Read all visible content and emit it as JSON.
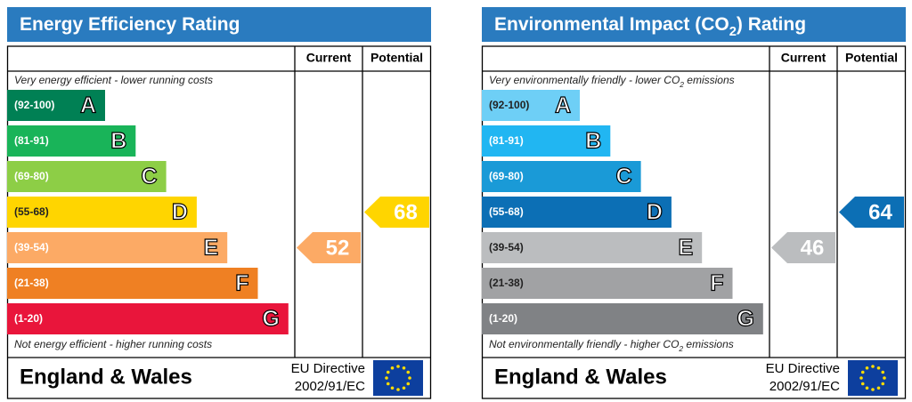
{
  "chart_data": [
    {
      "type": "epc",
      "title": [
        "Energy Efficiency Rating"
      ],
      "columns": [
        "Current",
        "Potential"
      ],
      "top_note": [
        "Very energy efficient - lower running costs"
      ],
      "bottom_note": [
        "Not energy efficient - higher running costs"
      ],
      "bands": [
        {
          "range": "(92-100)",
          "letter": "A",
          "color": "#008054"
        },
        {
          "range": "(81-91)",
          "letter": "B",
          "color": "#19b459"
        },
        {
          "range": "(69-80)",
          "letter": "C",
          "color": "#8dce46"
        },
        {
          "range": "(55-68)",
          "letter": "D",
          "color": "#ffd500"
        },
        {
          "range": "(39-54)",
          "letter": "E",
          "color": "#fcaa65"
        },
        {
          "range": "(21-38)",
          "letter": "F",
          "color": "#ef8023"
        },
        {
          "range": "(1-20)",
          "letter": "G",
          "color": "#e9153b"
        }
      ],
      "current": 52,
      "potential": 68,
      "footer": {
        "region": "England & Wales",
        "directive": [
          "EU Directive",
          "2002/91/EC"
        ]
      }
    },
    {
      "type": "epc",
      "title": [
        "Environmental Impact (CO",
        "2",
        ") Rating"
      ],
      "columns": [
        "Current",
        "Potential"
      ],
      "top_note": [
        "Very environmentally friendly - lower CO",
        "2",
        " emissions"
      ],
      "bottom_note": [
        "Not environmentally friendly - higher CO",
        "2",
        " emissions"
      ],
      "bands": [
        {
          "range": "(92-100)",
          "letter": "A",
          "color": "#6ecff6"
        },
        {
          "range": "(81-91)",
          "letter": "B",
          "color": "#21b6f2"
        },
        {
          "range": "(69-80)",
          "letter": "C",
          "color": "#1a9ad7"
        },
        {
          "range": "(55-68)",
          "letter": "D",
          "color": "#0c6fb5"
        },
        {
          "range": "(39-54)",
          "letter": "E",
          "color": "#bbbdbf"
        },
        {
          "range": "(21-38)",
          "letter": "F",
          "color": "#a1a2a4"
        },
        {
          "range": "(1-20)",
          "letter": "G",
          "color": "#808285"
        }
      ],
      "current": 46,
      "potential": 64,
      "footer": {
        "region": "England & Wales",
        "directive": [
          "EU Directive",
          "2002/91/EC"
        ]
      }
    }
  ]
}
